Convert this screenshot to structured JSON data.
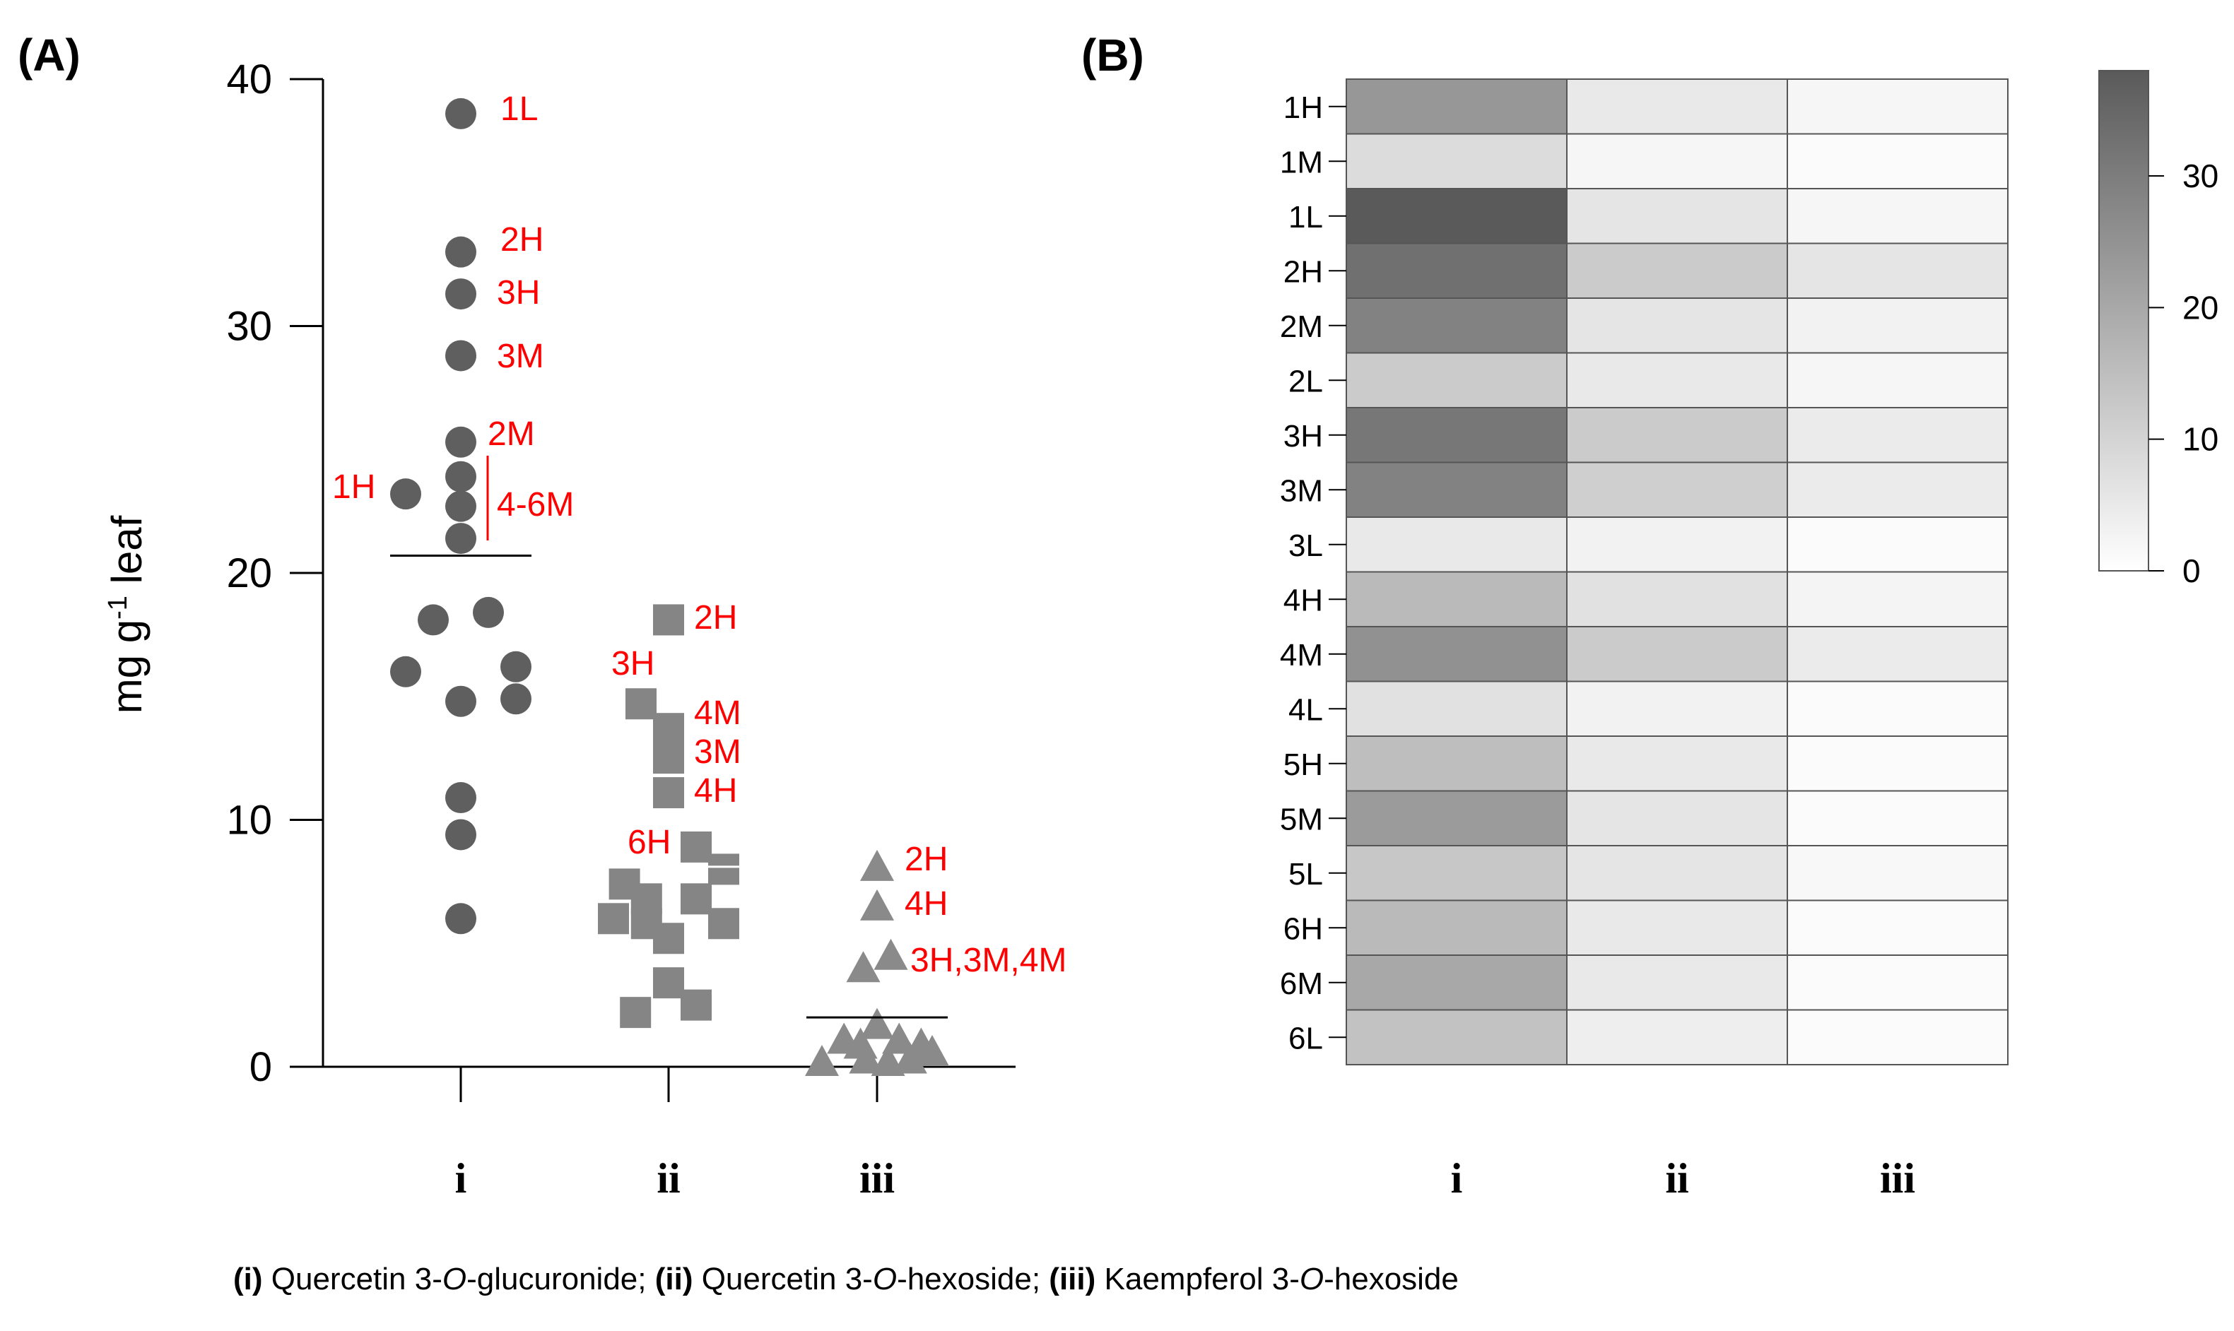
{
  "panel_a_label": "(A)",
  "panel_b_label": "(B)",
  "caption": {
    "parts": [
      {
        "text": "(i)",
        "style": "b"
      },
      {
        "text": " Quercetin 3-",
        "style": ""
      },
      {
        "text": "O",
        "style": "it"
      },
      {
        "text": "-glucuronide; ",
        "style": ""
      },
      {
        "text": "(ii)",
        "style": "b"
      },
      {
        "text": " Quercetin 3-",
        "style": ""
      },
      {
        "text": "O",
        "style": "it"
      },
      {
        "text": "-hexoside; ",
        "style": ""
      },
      {
        "text": "(iii)",
        "style": "b"
      },
      {
        "text": " Kaempferol 3-",
        "style": ""
      },
      {
        "text": "O",
        "style": "it"
      },
      {
        "text": "-hexoside",
        "style": ""
      }
    ]
  },
  "colors": {
    "series_i": "#5f5f5f",
    "series_ii": "#858585",
    "series_iii": "#8a8a8a",
    "annotation": "#ff0000"
  },
  "chart_data": [
    {
      "type": "scatter",
      "panel": "(A)",
      "ylabel_main": "mg g",
      "ylabel_sup": "-1",
      "ylabel_tail": " leaf",
      "ylim": [
        0,
        40
      ],
      "yticks": [
        0,
        10,
        20,
        30,
        40
      ],
      "categories": [
        "i",
        "ii",
        "iii"
      ],
      "series": [
        {
          "category": "i",
          "marker": "circle",
          "mean": 20.7,
          "points": [
            {
              "x": 0,
              "y": 38.6
            },
            {
              "x": 0,
              "y": 33.0
            },
            {
              "x": 0,
              "y": 31.3
            },
            {
              "x": 0,
              "y": 28.8
            },
            {
              "x": 0,
              "y": 25.3
            },
            {
              "x": 0,
              "y": 23.9
            },
            {
              "x": 0,
              "y": 22.7
            },
            {
              "x": 0,
              "y": 21.4
            },
            {
              "x": -1,
              "y": 23.2
            },
            {
              "x": -0.5,
              "y": 18.1
            },
            {
              "x": 0.5,
              "y": 18.4
            },
            {
              "x": -1,
              "y": 16.0
            },
            {
              "x": 1,
              "y": 16.2
            },
            {
              "x": 0,
              "y": 14.8
            },
            {
              "x": 1,
              "y": 14.9
            },
            {
              "x": 0,
              "y": 10.9
            },
            {
              "x": 0,
              "y": 9.4
            },
            {
              "x": 0,
              "y": 6.0
            }
          ]
        },
        {
          "category": "ii",
          "marker": "square",
          "mean": 8.1,
          "points": [
            {
              "x": 0,
              "y": 18.1
            },
            {
              "x": -0.5,
              "y": 14.7
            },
            {
              "x": 0,
              "y": 13.7
            },
            {
              "x": 0,
              "y": 12.5
            },
            {
              "x": 0,
              "y": 11.1
            },
            {
              "x": 0.5,
              "y": 8.9
            },
            {
              "x": 1,
              "y": 8.0
            },
            {
              "x": -0.8,
              "y": 7.4
            },
            {
              "x": -0.4,
              "y": 6.8
            },
            {
              "x": 0.5,
              "y": 6.8
            },
            {
              "x": -1,
              "y": 6.0
            },
            {
              "x": -0.4,
              "y": 5.8
            },
            {
              "x": 1,
              "y": 5.8
            },
            {
              "x": 0,
              "y": 5.2
            },
            {
              "x": 0,
              "y": 3.4
            },
            {
              "x": -0.6,
              "y": 2.2
            },
            {
              "x": 0.5,
              "y": 2.5
            }
          ]
        },
        {
          "category": "iii",
          "marker": "triangle",
          "mean": 2.0,
          "points": [
            {
              "x": 0,
              "y": 8.1
            },
            {
              "x": 0,
              "y": 6.5
            },
            {
              "x": 0.25,
              "y": 4.5
            },
            {
              "x": -0.25,
              "y": 4.0
            },
            {
              "x": 0,
              "y": 1.7
            },
            {
              "x": -0.6,
              "y": 1.1
            },
            {
              "x": -0.3,
              "y": 0.9
            },
            {
              "x": 0.4,
              "y": 1.1
            },
            {
              "x": 1,
              "y": 0.6
            },
            {
              "x": -1,
              "y": 0.2
            },
            {
              "x": -0.2,
              "y": 0.3
            },
            {
              "x": 0.2,
              "y": 0.2
            },
            {
              "x": 0.6,
              "y": 0.3
            },
            {
              "x": 0.8,
              "y": 0.9
            }
          ]
        }
      ],
      "annotations": [
        {
          "text": "1L"
        },
        {
          "text": "2H"
        },
        {
          "text": "3H"
        },
        {
          "text": "3M"
        },
        {
          "text": "2M"
        },
        {
          "text": "1H"
        },
        {
          "text": "4-6M"
        },
        {
          "text": "2H"
        },
        {
          "text": "3H"
        },
        {
          "text": "4M"
        },
        {
          "text": "3M"
        },
        {
          "text": "4H"
        },
        {
          "text": "6H"
        },
        {
          "text": "2H"
        },
        {
          "text": "4H"
        },
        {
          "text": "3H,3M,4M"
        }
      ]
    },
    {
      "type": "heatmap",
      "panel": "(B)",
      "rows": [
        "1H",
        "1M",
        "1L",
        "2H",
        "2M",
        "2L",
        "3H",
        "3M",
        "3L",
        "4H",
        "4M",
        "4L",
        "5H",
        "5M",
        "5L",
        "6H",
        "6M",
        "6L"
      ],
      "columns": [
        "i",
        "ii",
        "iii"
      ],
      "values": [
        [
          24,
          5,
          2
        ],
        [
          8,
          2,
          1
        ],
        [
          38.6,
          6,
          2
        ],
        [
          33,
          12,
          6
        ],
        [
          28.8,
          6,
          3
        ],
        [
          12,
          5,
          2
        ],
        [
          31.3,
          12,
          4.5
        ],
        [
          28.8,
          11,
          4.5
        ],
        [
          5,
          3,
          1
        ],
        [
          16,
          7,
          2.5
        ],
        [
          25.3,
          12,
          4.5
        ],
        [
          7,
          3,
          1
        ],
        [
          15,
          5,
          1
        ],
        [
          23,
          6,
          1
        ],
        [
          13,
          6,
          1.5
        ],
        [
          16,
          5,
          1
        ],
        [
          20,
          5,
          1
        ],
        [
          14,
          4,
          1
        ]
      ],
      "colorbar": {
        "min": 0,
        "max": 38,
        "ticks": [
          0,
          10,
          20,
          30
        ],
        "low_color": "#ffffff",
        "high_color": "#5a5a5a"
      }
    }
  ]
}
